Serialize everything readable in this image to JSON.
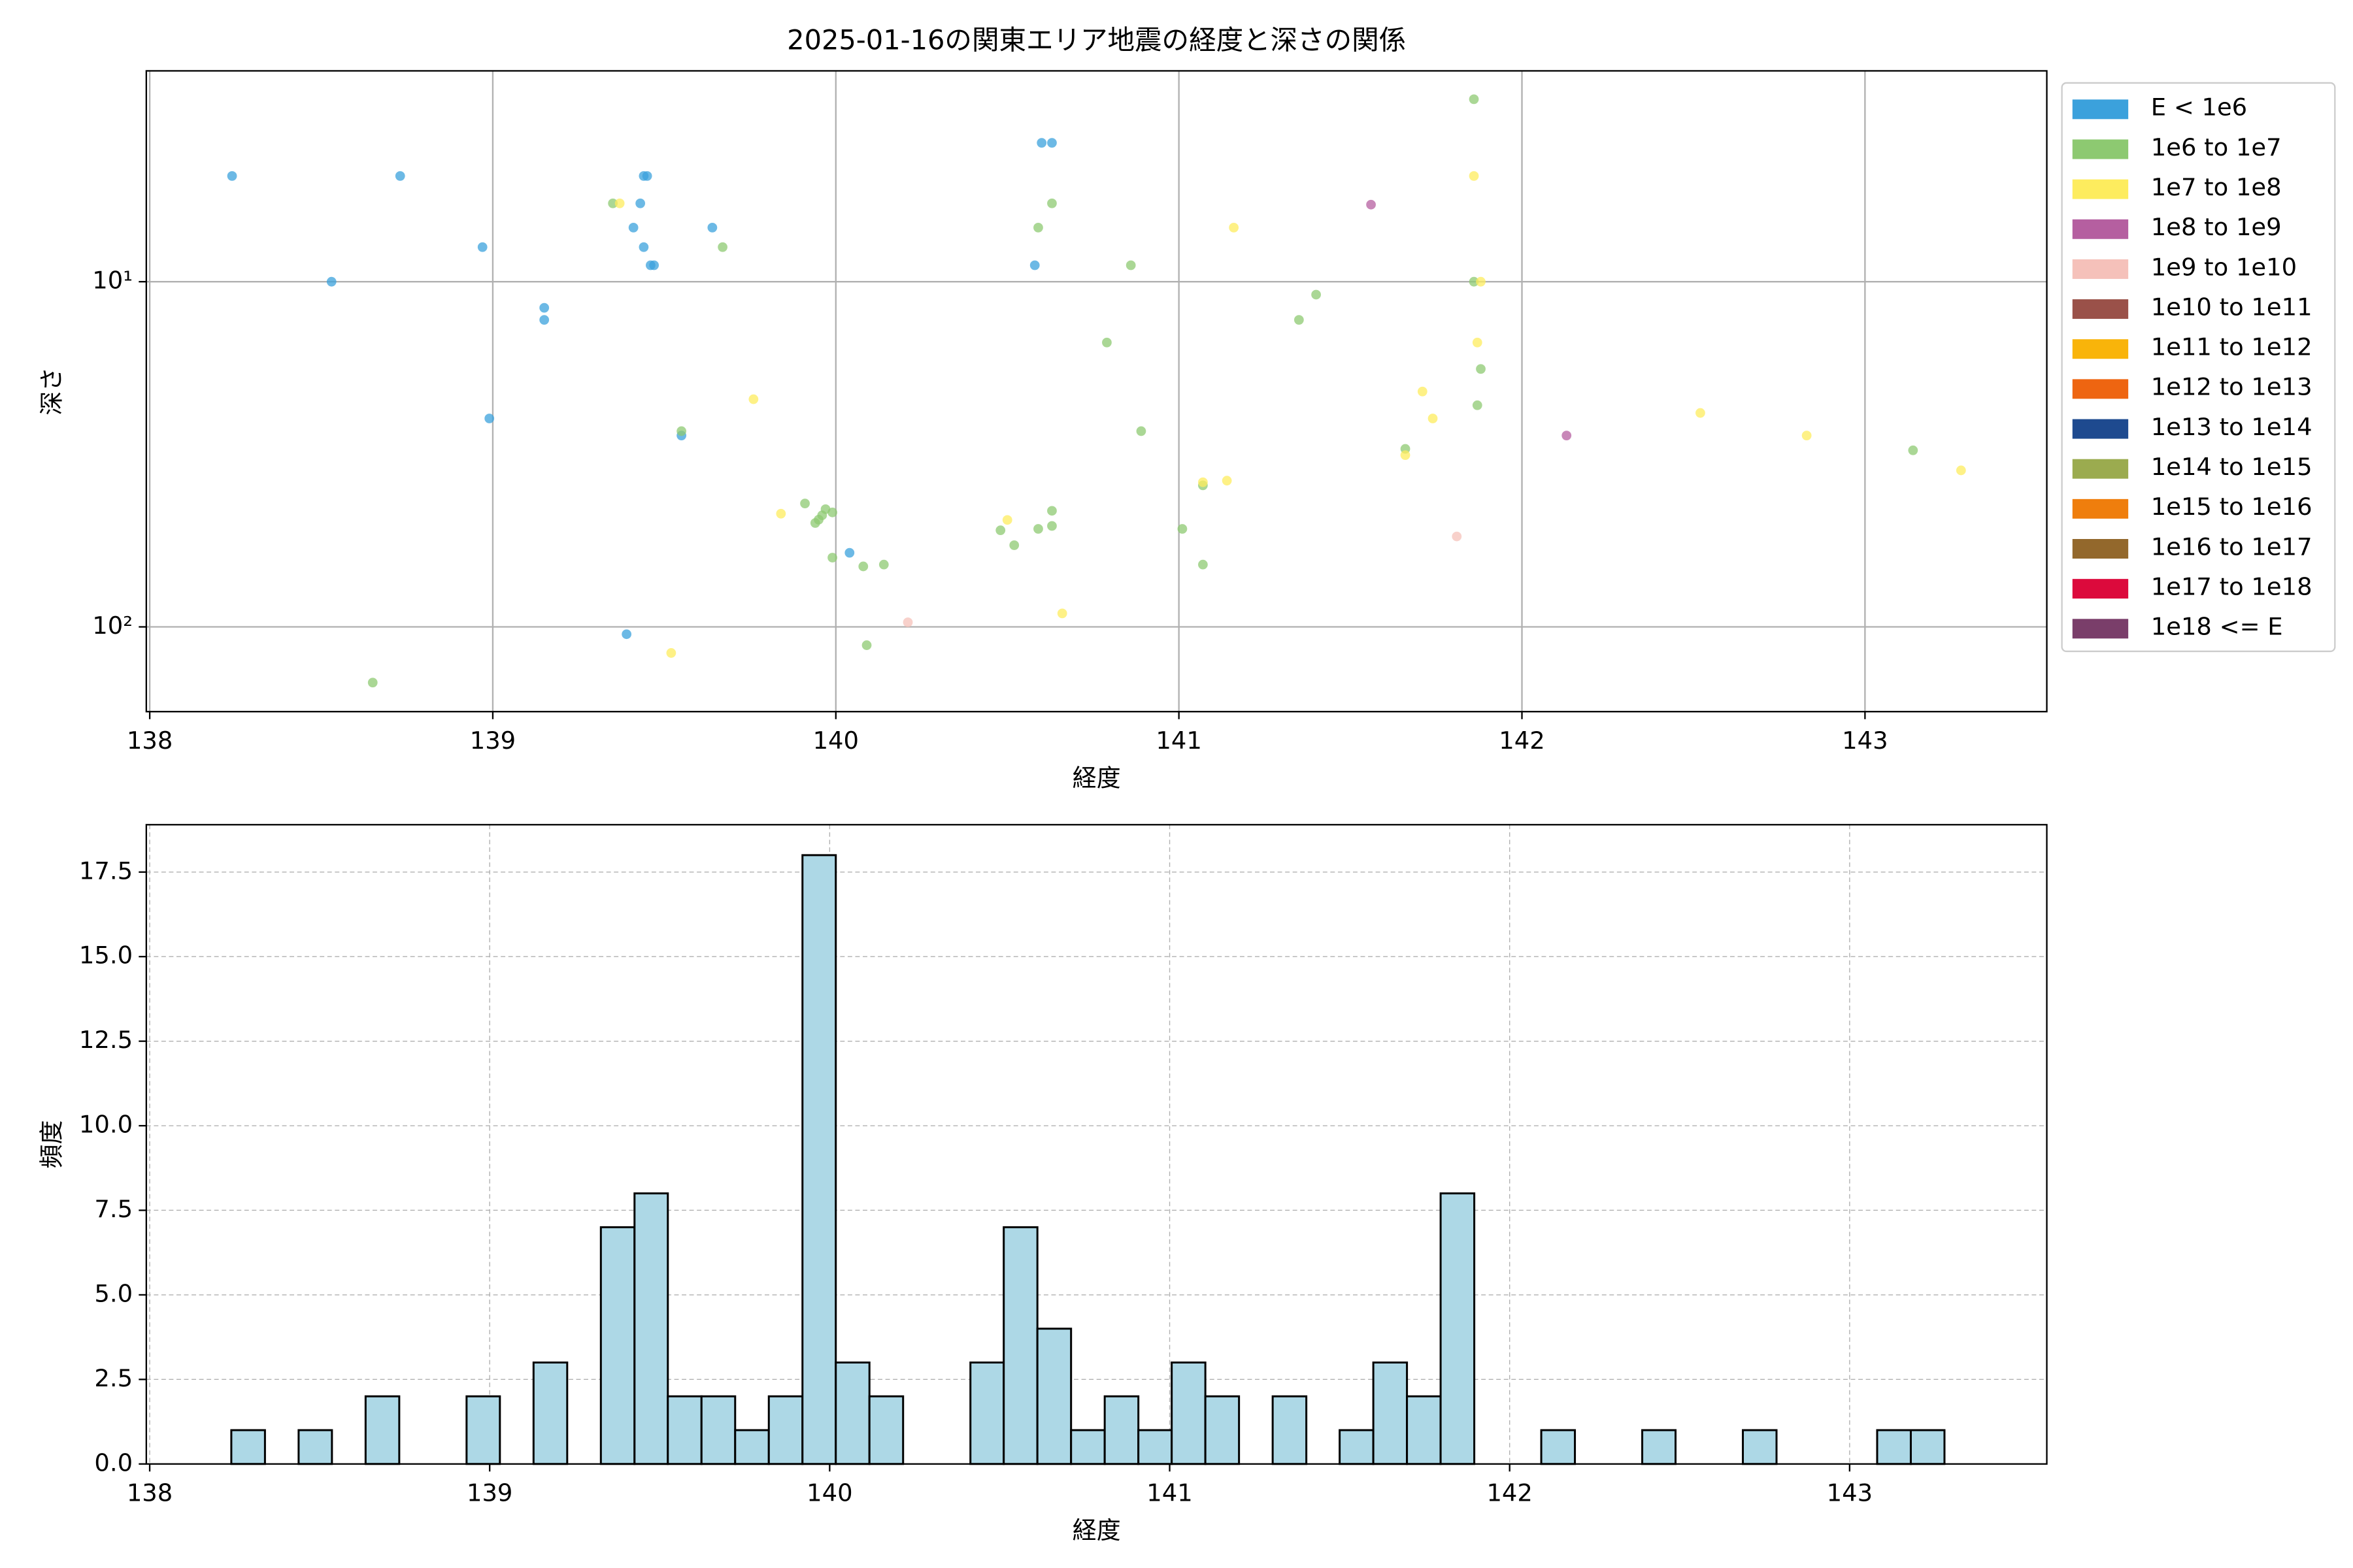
{
  "chart_data": [
    {
      "type": "scatter",
      "title": "2025-01-16の関東エリア地震の経度と深さの関係",
      "x_label": "経度",
      "y_label": "深さ",
      "xlim": [
        137.99,
        143.53
      ],
      "xticks": [
        138,
        139,
        140,
        141,
        142,
        143
      ],
      "ylim": [
        176,
        2.45
      ],
      "y_scale": "log",
      "y_inverted": true,
      "yticks": [
        {
          "value": 10,
          "label": "10¹"
        },
        {
          "value": 100,
          "label": "10²"
        }
      ],
      "grid": true,
      "legend": "outside right",
      "series": [
        {
          "name": "E < 1e6",
          "color": "#3ba1dc",
          "x": [
            138.24,
            138.73,
            138.53,
            138.97,
            139.15,
            139.15,
            138.99,
            139.44,
            139.45,
            139.43,
            139.41,
            139.44,
            139.46,
            139.47,
            139.64,
            139.55,
            139.39,
            140.04,
            140.6,
            140.63,
            140.58
          ],
          "y": [
            4.94,
            4.94,
            10,
            7.94,
            11.9,
            12.9,
            24.9,
            4.94,
            4.94,
            5.93,
            6.97,
            7.94,
            8.96,
            8.96,
            6.97,
            27.9,
            105,
            61,
            3.96,
            3.96,
            8.96
          ]
        },
        {
          "name": "1e6 to 1e7",
          "color": "#8dc971",
          "x": [
            141.86,
            139.35,
            140.63,
            140.59,
            139.67,
            140.86,
            141.86,
            141.4,
            141.35,
            140.79,
            141.88,
            141.87,
            139.55,
            140.89,
            141.66,
            141.07,
            139.91,
            139.94,
            139.96,
            139.97,
            139.99,
            139.95,
            140.63,
            140.63,
            140.59,
            140.48,
            141.01,
            140.52,
            139.99,
            140.08,
            140.14,
            141.07,
            140.09,
            138.65,
            143.14
          ],
          "y": [
            2.96,
            5.93,
            5.93,
            6.97,
            7.94,
            8.96,
            10,
            10.9,
            12.9,
            15.0,
            17.9,
            22.8,
            27.1,
            27.1,
            30.5,
            38.9,
            43.9,
            50,
            47.5,
            45.6,
            46.6,
            48.9,
            46.1,
            51,
            52,
            52.5,
            52,
            58,
            63,
            66.8,
            66,
            66,
            113,
            145,
            30.8
          ]
        },
        {
          "name": "1e7 to 1e8",
          "color": "#fdec5e",
          "x": [
            141.86,
            139.37,
            141.16,
            141.88,
            141.87,
            141.71,
            141.74,
            139.76,
            142.52,
            142.83,
            143.28,
            141.66,
            141.07,
            141.14,
            139.84,
            140.5,
            140.66,
            139.52
          ],
          "y": [
            4.94,
            5.93,
            6.97,
            10,
            15,
            20.8,
            24.9,
            21.9,
            24,
            27.9,
            35.2,
            31.8,
            38.1,
            37.7,
            47,
            49,
            91.4,
            119
          ]
        },
        {
          "name": "1e8 to 1e9",
          "color": "#b55fa0",
          "x": [
            141.56,
            142.13
          ],
          "y": [
            5.98,
            27.9
          ]
        },
        {
          "name": "1e9 to 1e10",
          "color": "#f5c1ba",
          "x": [
            140.21,
            141.81
          ],
          "y": [
            97,
            54.7
          ]
        },
        {
          "name": "1e10 to 1e11",
          "color": "#9a5149",
          "x": [],
          "y": []
        },
        {
          "name": "1e11 to 1e12",
          "color": "#f9b40a",
          "x": [],
          "y": []
        },
        {
          "name": "1e12 to 1e13",
          "color": "#ee6511",
          "x": [],
          "y": []
        },
        {
          "name": "1e13 to 1e14",
          "color": "#1e4a8f",
          "x": [],
          "y": []
        },
        {
          "name": "1e14 to 1e15",
          "color": "#9bab4f",
          "x": [],
          "y": []
        },
        {
          "name": "1e15 to 1e16",
          "color": "#ef7e0d",
          "x": [],
          "y": []
        },
        {
          "name": "1e16 to 1e17",
          "color": "#93682c",
          "x": [],
          "y": []
        },
        {
          "name": "1e17 to 1e18",
          "color": "#dc0a3c",
          "x": [],
          "y": []
        },
        {
          "name": "1e18 <= E",
          "color": "#7a3e6a",
          "x": [],
          "y": []
        }
      ]
    },
    {
      "type": "histogram",
      "x_label": "経度",
      "y_label": "頻度",
      "color": "#add8e6",
      "edgecolor": "#000000",
      "grid": true,
      "xlim": [
        137.99,
        143.58
      ],
      "xticks": [
        138,
        139,
        140,
        141,
        142,
        143
      ],
      "ylim": [
        0,
        18.9
      ],
      "yticks": [
        {
          "value": 0,
          "label": "0.0"
        },
        2.5,
        {
          "value": 5,
          "label": "5.0"
        },
        7.5,
        {
          "value": 10,
          "label": "10.0"
        },
        12.5,
        {
          "value": 15,
          "label": "15.0"
        },
        17.5
      ],
      "bins": [
        138.24,
        138.339,
        138.438,
        138.536,
        138.635,
        138.734,
        138.833,
        138.932,
        139.03,
        139.129,
        139.228,
        139.327,
        139.426,
        139.524,
        139.623,
        139.722,
        139.821,
        139.92,
        140.018,
        140.117,
        140.216,
        140.315,
        140.414,
        140.512,
        140.611,
        140.71,
        140.809,
        140.908,
        141.006,
        141.105,
        141.204,
        141.303,
        141.402,
        141.5,
        141.599,
        141.698,
        141.797,
        141.896,
        141.994,
        142.093,
        142.192,
        142.291,
        142.39,
        142.488,
        142.587,
        142.686,
        142.785,
        142.884,
        142.982,
        143.081,
        143.18,
        143.279
      ],
      "counts": [
        1,
        0,
        1,
        0,
        2,
        0,
        0,
        2,
        0,
        3,
        0,
        7,
        8,
        2,
        2,
        1,
        2,
        18,
        3,
        2,
        0,
        0,
        3,
        7,
        4,
        1,
        2,
        1,
        3,
        2,
        0,
        2,
        0,
        1,
        3,
        2,
        8,
        0,
        0,
        1,
        0,
        0,
        1,
        0,
        0,
        1,
        0,
        0,
        0,
        1,
        1
      ]
    }
  ]
}
